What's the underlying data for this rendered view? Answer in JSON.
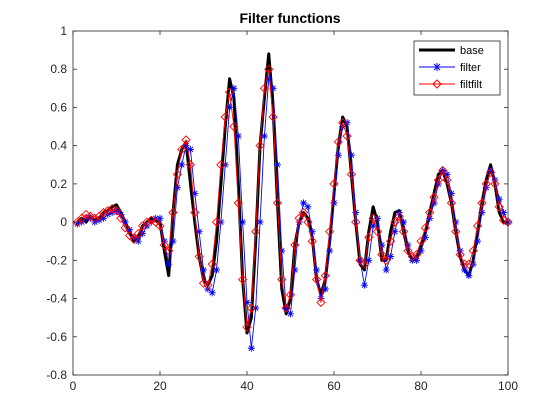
{
  "chart_data": {
    "type": "line",
    "title": "Filter functions",
    "xlabel": "",
    "ylabel": "",
    "xlim": [
      0,
      100
    ],
    "ylim": [
      -0.8,
      1
    ],
    "xticks": [
      0,
      20,
      40,
      60,
      80,
      100
    ],
    "yticks": [
      -0.8,
      -0.6,
      -0.4,
      -0.2,
      0,
      0.2,
      0.4,
      0.6,
      0.8,
      1
    ],
    "xtick_labels": [
      "0",
      "20",
      "40",
      "60",
      "80",
      "100"
    ],
    "ytick_labels": [
      "-0.8",
      "-0.6",
      "-0.4",
      "-0.2",
      "0",
      "0.2",
      "0.4",
      "0.6",
      "0.8",
      "1"
    ],
    "grid": false,
    "legend_position": "top-right",
    "series": [
      {
        "name": "base",
        "color": "#000000",
        "marker": "none",
        "x": [
          1,
          2,
          3,
          4,
          5,
          6,
          7,
          8,
          9,
          10,
          11,
          12,
          13,
          14,
          15,
          16,
          17,
          18,
          19,
          20,
          21,
          22,
          23,
          24,
          25,
          26,
          27,
          28,
          29,
          30,
          31,
          32,
          33,
          34,
          35,
          36,
          37,
          38,
          39,
          40,
          41,
          42,
          43,
          44,
          45,
          46,
          47,
          48,
          49,
          50,
          51,
          52,
          53,
          54,
          55,
          56,
          57,
          58,
          59,
          60,
          61,
          62,
          63,
          64,
          65,
          66,
          67,
          68,
          69,
          70,
          71,
          72,
          73,
          74,
          75,
          76,
          77,
          78,
          79,
          80,
          81,
          82,
          83,
          84,
          85,
          86,
          87,
          88,
          89,
          90,
          91,
          92,
          93,
          94,
          95,
          96,
          97,
          98,
          99,
          100
        ],
        "y": [
          0.0,
          0.02,
          0.0,
          0.03,
          0.01,
          0.02,
          0.05,
          0.06,
          0.08,
          0.09,
          0.05,
          0.0,
          -0.05,
          -0.1,
          -0.08,
          -0.02,
          0.0,
          0.02,
          0.01,
          0.0,
          -0.15,
          -0.28,
          0.05,
          0.3,
          0.38,
          0.42,
          0.2,
          0.0,
          -0.18,
          -0.3,
          -0.33,
          -0.28,
          -0.1,
          0.2,
          0.5,
          0.75,
          0.65,
          0.2,
          -0.3,
          -0.58,
          -0.5,
          -0.1,
          0.4,
          0.65,
          0.88,
          0.6,
          0.1,
          -0.35,
          -0.48,
          -0.4,
          -0.12,
          0.0,
          0.05,
          0.02,
          -0.08,
          -0.3,
          -0.38,
          -0.3,
          -0.1,
          0.15,
          0.4,
          0.55,
          0.5,
          0.25,
          0.0,
          -0.22,
          -0.25,
          -0.05,
          0.08,
          0.0,
          -0.2,
          -0.2,
          -0.05,
          0.05,
          0.06,
          -0.05,
          -0.15,
          -0.2,
          -0.18,
          -0.12,
          -0.05,
          0.05,
          0.15,
          0.25,
          0.27,
          0.2,
          0.1,
          -0.05,
          -0.18,
          -0.25,
          -0.28,
          -0.2,
          -0.05,
          0.1,
          0.22,
          0.3,
          0.2,
          0.05,
          0.0,
          -0.01
        ]
      },
      {
        "name": "filter",
        "color": "#0000ff",
        "marker": "asterisk",
        "x": [
          1,
          2,
          3,
          4,
          5,
          6,
          7,
          8,
          9,
          10,
          11,
          12,
          13,
          14,
          15,
          16,
          17,
          18,
          19,
          20,
          21,
          22,
          23,
          24,
          25,
          26,
          27,
          28,
          29,
          30,
          31,
          32,
          33,
          34,
          35,
          36,
          37,
          38,
          39,
          40,
          41,
          42,
          43,
          44,
          45,
          46,
          47,
          48,
          49,
          50,
          51,
          52,
          53,
          54,
          55,
          56,
          57,
          58,
          59,
          60,
          61,
          62,
          63,
          64,
          65,
          66,
          67,
          68,
          69,
          70,
          71,
          72,
          73,
          74,
          75,
          76,
          77,
          78,
          79,
          80,
          81,
          82,
          83,
          84,
          85,
          86,
          87,
          88,
          89,
          90,
          91,
          92,
          93,
          94,
          95,
          96,
          97,
          98,
          99,
          100
        ],
        "y": [
          -0.01,
          0.0,
          0.02,
          0.02,
          0.0,
          0.01,
          0.02,
          0.04,
          0.05,
          0.06,
          0.04,
          0.0,
          -0.04,
          -0.08,
          -0.1,
          -0.06,
          -0.02,
          0.0,
          0.02,
          0.02,
          -0.1,
          -0.22,
          -0.1,
          0.18,
          0.3,
          0.4,
          0.38,
          0.15,
          -0.05,
          -0.25,
          -0.35,
          -0.37,
          -0.25,
          0.0,
          0.3,
          0.6,
          0.7,
          0.45,
          0.0,
          -0.42,
          -0.66,
          -0.45,
          0.0,
          0.45,
          0.75,
          0.7,
          0.3,
          -0.15,
          -0.45,
          -0.48,
          -0.25,
          0.0,
          0.1,
          0.08,
          -0.05,
          -0.25,
          -0.4,
          -0.35,
          -0.15,
          0.1,
          0.35,
          0.5,
          0.52,
          0.35,
          0.05,
          -0.2,
          -0.33,
          -0.2,
          -0.02,
          0.02,
          -0.12,
          -0.25,
          -0.18,
          -0.05,
          0.05,
          0.0,
          -0.12,
          -0.2,
          -0.2,
          -0.15,
          -0.08,
          0.02,
          0.1,
          0.2,
          0.27,
          0.25,
          0.15,
          0.0,
          -0.15,
          -0.25,
          -0.28,
          -0.22,
          -0.1,
          0.05,
          0.18,
          0.27,
          0.22,
          0.12,
          0.05,
          0.0
        ]
      },
      {
        "name": "filtfilt",
        "color": "#ff0000",
        "marker": "diamond",
        "x": [
          1,
          2,
          3,
          4,
          5,
          6,
          7,
          8,
          9,
          10,
          11,
          12,
          13,
          14,
          15,
          16,
          17,
          18,
          19,
          20,
          21,
          22,
          23,
          24,
          25,
          26,
          27,
          28,
          29,
          30,
          31,
          32,
          33,
          34,
          35,
          36,
          37,
          38,
          39,
          40,
          41,
          42,
          43,
          44,
          45,
          46,
          47,
          48,
          49,
          50,
          51,
          52,
          53,
          54,
          55,
          56,
          57,
          58,
          59,
          60,
          61,
          62,
          63,
          64,
          65,
          66,
          67,
          68,
          69,
          70,
          71,
          72,
          73,
          74,
          75,
          76,
          77,
          78,
          79,
          80,
          81,
          82,
          83,
          84,
          85,
          86,
          87,
          88,
          89,
          90,
          91,
          92,
          93,
          94,
          95,
          96,
          97,
          98,
          99,
          100
        ],
        "y": [
          0.0,
          0.02,
          0.04,
          0.03,
          0.02,
          0.03,
          0.05,
          0.06,
          0.07,
          0.06,
          0.02,
          -0.03,
          -0.07,
          -0.09,
          -0.06,
          -0.02,
          0.0,
          0.01,
          0.0,
          -0.02,
          -0.12,
          -0.15,
          0.05,
          0.25,
          0.38,
          0.43,
          0.3,
          0.05,
          -0.18,
          -0.32,
          -0.33,
          -0.22,
          0.0,
          0.3,
          0.55,
          0.68,
          0.5,
          0.1,
          -0.3,
          -0.55,
          -0.45,
          -0.05,
          0.4,
          0.7,
          0.8,
          0.55,
          0.1,
          -0.3,
          -0.45,
          -0.38,
          -0.12,
          0.02,
          0.05,
          0.0,
          -0.1,
          -0.3,
          -0.42,
          -0.28,
          -0.05,
          0.2,
          0.42,
          0.52,
          0.45,
          0.25,
          0.0,
          -0.2,
          -0.22,
          -0.08,
          0.02,
          -0.05,
          -0.17,
          -0.2,
          -0.1,
          0.0,
          0.03,
          -0.05,
          -0.15,
          -0.18,
          -0.17,
          -0.1,
          -0.03,
          0.05,
          0.13,
          0.22,
          0.27,
          0.22,
          0.1,
          -0.05,
          -0.17,
          -0.22,
          -0.22,
          -0.15,
          -0.02,
          0.1,
          0.2,
          0.26,
          0.2,
          0.08,
          0.01,
          0.0
        ]
      }
    ]
  }
}
